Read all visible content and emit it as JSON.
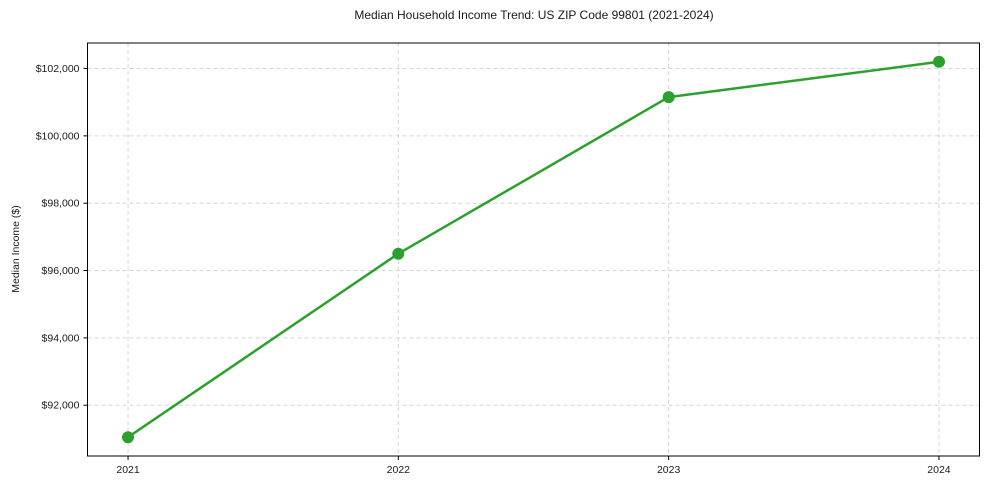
{
  "chart_data": {
    "type": "line",
    "title": "Median Household Income Trend: US ZIP Code 99801 (2021-2024)",
    "ylabel": "Median Income ($)",
    "xlabel": "",
    "x": [
      2021,
      2022,
      2023,
      2024
    ],
    "series": [
      {
        "name": "Median Income ($)",
        "values": [
          91050,
          96500,
          101150,
          102200
        ]
      }
    ],
    "xticks": [
      2021,
      2022,
      2023,
      2024
    ],
    "xtick_labels": [
      "2021",
      "2022",
      "2023",
      "2024"
    ],
    "yticks": [
      92000,
      94000,
      96000,
      98000,
      100000,
      102000
    ],
    "ytick_labels": [
      "$92,000",
      "$94,000",
      "$96,000",
      "$98,000",
      "$100,000",
      "$102,000"
    ],
    "xlim": [
      2020.85,
      2024.15
    ],
    "ylim": [
      90492,
      102758
    ],
    "grid": true,
    "grid_style": "dashed",
    "legend": "none",
    "marker": "circle",
    "colors": {
      "line": "#2ca02c",
      "marker": "#2ca02c",
      "grid": "#d4d4d4",
      "axis": "#000000",
      "text": "#1a1a1a",
      "background": "#ffffff"
    }
  }
}
